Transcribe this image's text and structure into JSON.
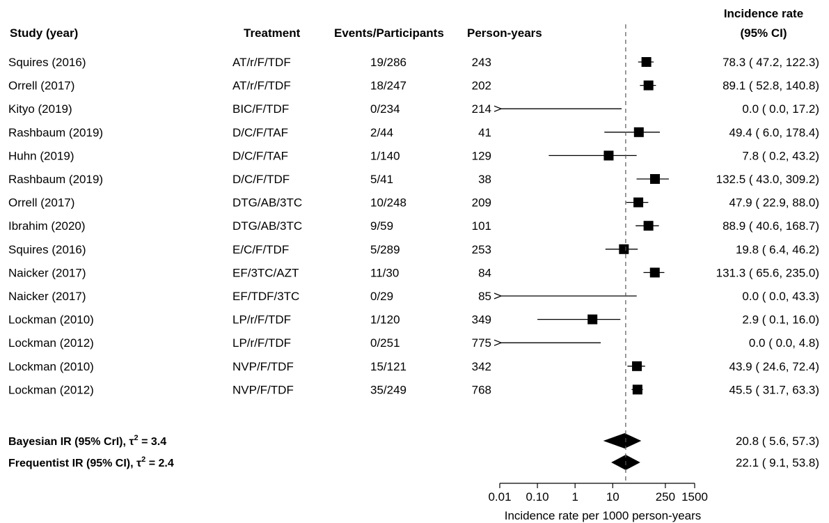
{
  "chart_data": {
    "type": "forest",
    "headers": {
      "study": "Study (year)",
      "treatment": "Treatment",
      "events": "Events/Participants",
      "person_years": "Person-years",
      "ir_line1": "Incidence rate",
      "ir_line2": "(95% CI)"
    },
    "rows": [
      {
        "study": "Squires (2016)",
        "treatment": "AT/r/F/TDF",
        "events": "19/286",
        "person_years": "243",
        "ir": 78.3,
        "lo": 47.2,
        "hi": 122.3,
        "ci_text": "78.3 ( 47.2, 122.3)"
      },
      {
        "study": "Orrell (2017)",
        "treatment": "AT/r/F/TDF",
        "events": "18/247",
        "person_years": "202",
        "ir": 89.1,
        "lo": 52.8,
        "hi": 140.8,
        "ci_text": "89.1 ( 52.8, 140.8)"
      },
      {
        "study": "Kityo (2019)",
        "treatment": "BIC/F/TDF",
        "events": "0/234",
        "person_years": "214",
        "ir": 0.0,
        "lo": 0.0,
        "hi": 17.2,
        "ci_text": "0.0 (  0.0,  17.2)"
      },
      {
        "study": "Rashbaum (2019)",
        "treatment": "D/C/F/TAF",
        "events": "2/44",
        "person_years": "41",
        "ir": 49.4,
        "lo": 6.0,
        "hi": 178.4,
        "ci_text": "49.4 (  6.0, 178.4)"
      },
      {
        "study": "Huhn (2019)",
        "treatment": "D/C/F/TAF",
        "events": "1/140",
        "person_years": "129",
        "ir": 7.8,
        "lo": 0.2,
        "hi": 43.2,
        "ci_text": "7.8 (  0.2,  43.2)"
      },
      {
        "study": "Rashbaum (2019)",
        "treatment": "D/C/F/TDF",
        "events": "5/41",
        "person_years": "38",
        "ir": 132.5,
        "lo": 43.0,
        "hi": 309.2,
        "ci_text": "132.5 ( 43.0, 309.2)"
      },
      {
        "study": "Orrell (2017)",
        "treatment": "DTG/AB/3TC",
        "events": "10/248",
        "person_years": "209",
        "ir": 47.9,
        "lo": 22.9,
        "hi": 88.0,
        "ci_text": "47.9 ( 22.9,  88.0)"
      },
      {
        "study": "Ibrahim (2020)",
        "treatment": "DTG/AB/3TC",
        "events": "9/59",
        "person_years": "101",
        "ir": 88.9,
        "lo": 40.6,
        "hi": 168.7,
        "ci_text": "88.9 ( 40.6, 168.7)"
      },
      {
        "study": "Squires (2016)",
        "treatment": "E/C/F/TDF",
        "events": "5/289",
        "person_years": "253",
        "ir": 19.8,
        "lo": 6.4,
        "hi": 46.2,
        "ci_text": "19.8 (  6.4,  46.2)"
      },
      {
        "study": "Naicker (2017)",
        "treatment": "EF/3TC/AZT",
        "events": "11/30",
        "person_years": "84",
        "ir": 131.3,
        "lo": 65.6,
        "hi": 235.0,
        "ci_text": "131.3 ( 65.6, 235.0)"
      },
      {
        "study": "Naicker (2017)",
        "treatment": "EF/TDF/3TC",
        "events": "0/29",
        "person_years": "85",
        "ir": 0.0,
        "lo": 0.0,
        "hi": 43.3,
        "ci_text": "0.0 (  0.0,  43.3)"
      },
      {
        "study": "Lockman (2010)",
        "treatment": "LP/r/F/TDF",
        "events": "1/120",
        "person_years": "349",
        "ir": 2.9,
        "lo": 0.1,
        "hi": 16.0,
        "ci_text": "2.9 (  0.1,  16.0)"
      },
      {
        "study": "Lockman (2012)",
        "treatment": "LP/r/F/TDF",
        "events": "0/251",
        "person_years": "775",
        "ir": 0.0,
        "lo": 0.0,
        "hi": 4.8,
        "ci_text": "0.0 (  0.0,   4.8)"
      },
      {
        "study": "Lockman (2010)",
        "treatment": "NVP/F/TDF",
        "events": "15/121",
        "person_years": "342",
        "ir": 43.9,
        "lo": 24.6,
        "hi": 72.4,
        "ci_text": "43.9 ( 24.6,  72.4)"
      },
      {
        "study": "Lockman (2012)",
        "treatment": "NVP/F/TDF",
        "events": "35/249",
        "person_years": "768",
        "ir": 45.5,
        "lo": 31.7,
        "hi": 63.3,
        "ci_text": "45.5 ( 31.7,  63.3)"
      }
    ],
    "summaries": [
      {
        "label_main": "Bayesian IR (95% CrI), τ",
        "label_sup": "2",
        "label_tail": " = 3.4",
        "ir": 20.8,
        "lo": 5.6,
        "hi": 57.3,
        "ci_text": "20.8 (  5.6,  57.3)"
      },
      {
        "label_main": "Frequentist IR (95% CI), τ",
        "label_sup": "2",
        "label_tail": " = 2.4",
        "ir": 22.1,
        "lo": 9.1,
        "hi": 53.8,
        "ci_text": "22.1 (  9.1,  53.8)"
      }
    ],
    "reference_line": 22.1,
    "x_scale": "log",
    "x_ticks": [
      {
        "value": 0.01,
        "label": "0.01"
      },
      {
        "value": 0.1,
        "label": "0.10"
      },
      {
        "value": 1,
        "label": "1"
      },
      {
        "value": 10,
        "label": "10"
      },
      {
        "value": 250,
        "label": "250"
      },
      {
        "value": 1500,
        "label": "1500"
      }
    ],
    "xlim": [
      0.01,
      1500
    ],
    "xlabel": "Incidence rate per 1000 person-years"
  }
}
